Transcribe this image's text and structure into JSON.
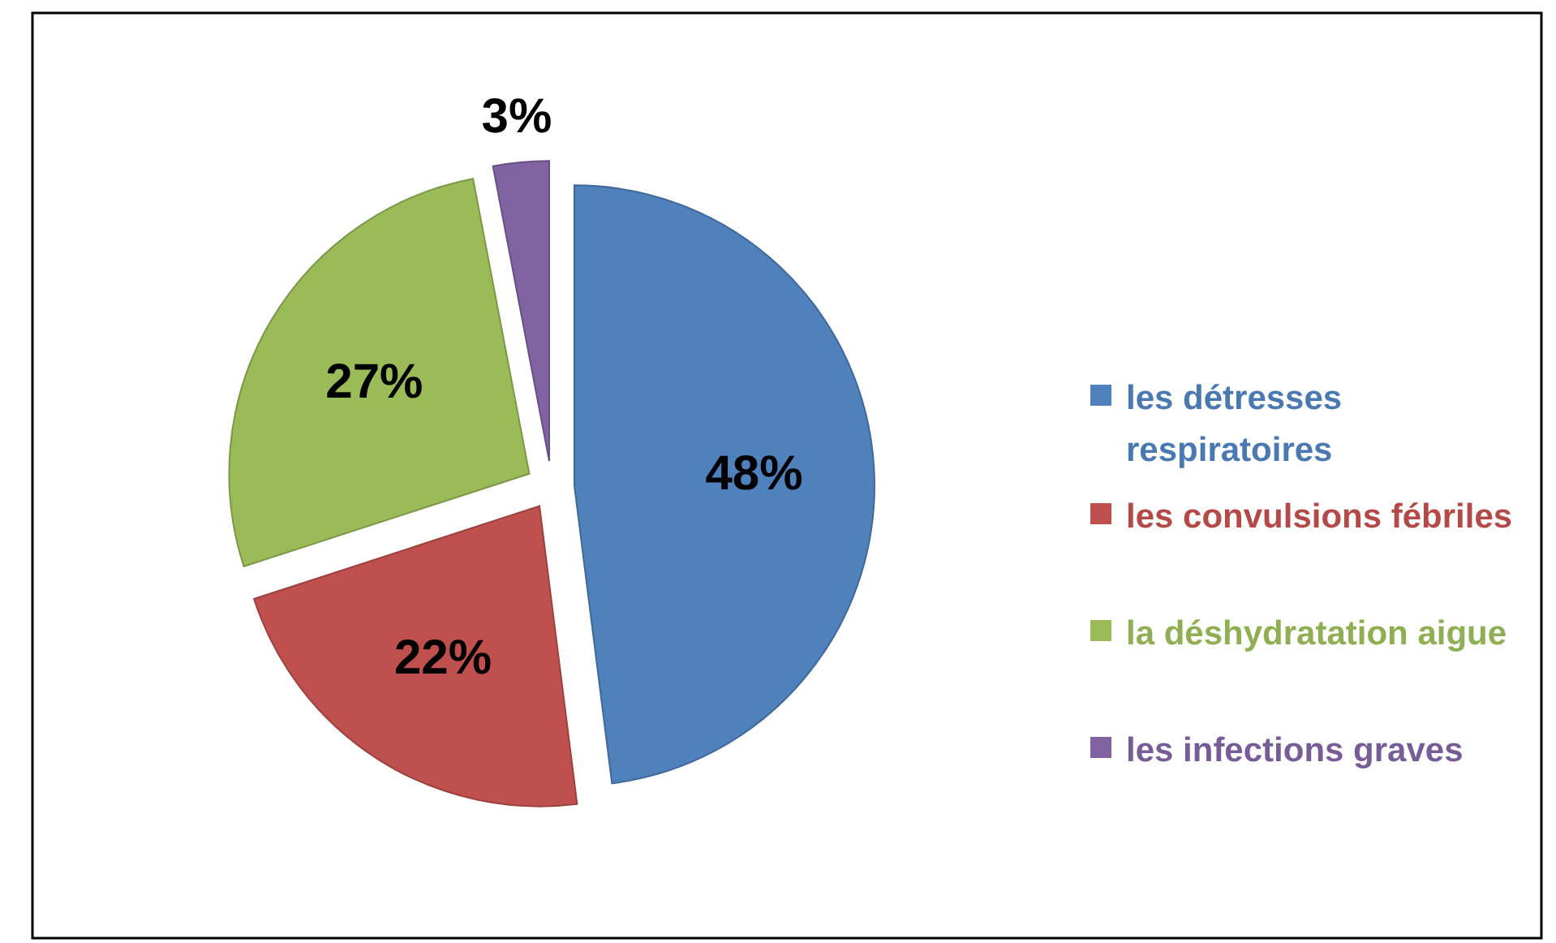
{
  "chart_data": {
    "type": "pie",
    "categories": [
      "les détresses respiratoires",
      "les convulsions fébriles",
      "la déshydratation aigue",
      "les infections graves"
    ],
    "values": [
      48,
      22,
      27,
      3
    ],
    "colors": [
      "#4f81bd",
      "#c0504d",
      "#9bbb59",
      "#8064a2"
    ],
    "value_labels": [
      "48%",
      "22%",
      "27%",
      "3%"
    ],
    "legend": "right"
  }
}
